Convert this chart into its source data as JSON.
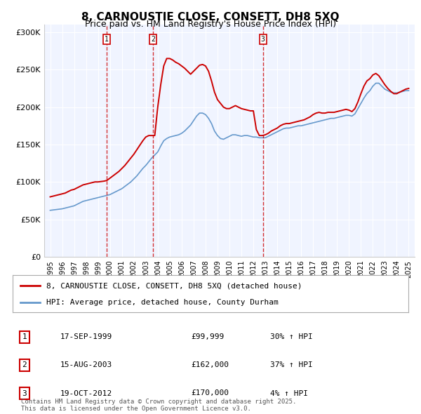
{
  "title": "8, CARNOUSTIE CLOSE, CONSETT, DH8 5XQ",
  "subtitle": "Price paid vs. HM Land Registry's House Price Index (HPI)",
  "legend_line1": "8, CARNOUSTIE CLOSE, CONSETT, DH8 5XQ (detached house)",
  "legend_line2": "HPI: Average price, detached house, County Durham",
  "footnote": "Contains HM Land Registry data © Crown copyright and database right 2025.\nThis data is licensed under the Open Government Licence v3.0.",
  "transactions": [
    {
      "num": 1,
      "date": "17-SEP-1999",
      "price": "£99,999",
      "change": "30% ↑ HPI",
      "year": 1999.71
    },
    {
      "num": 2,
      "date": "15-AUG-2003",
      "price": "£162,000",
      "change": "37% ↑ HPI",
      "year": 2003.62
    },
    {
      "num": 3,
      "date": "19-OCT-2012",
      "price": "£170,000",
      "change": "4% ↑ HPI",
      "year": 2012.8
    }
  ],
  "transaction_prices": [
    99999,
    162000,
    170000
  ],
  "red_line_color": "#cc0000",
  "blue_line_color": "#6699cc",
  "background_color": "#f0f4ff",
  "grid_color": "#ffffff",
  "ylim": [
    0,
    310000
  ],
  "xlim": [
    1994.5,
    2025.5
  ],
  "hpi_data": {
    "years": [
      1995.0,
      1995.25,
      1995.5,
      1995.75,
      1996.0,
      1996.25,
      1996.5,
      1996.75,
      1997.0,
      1997.25,
      1997.5,
      1997.75,
      1998.0,
      1998.25,
      1998.5,
      1998.75,
      1999.0,
      1999.25,
      1999.5,
      1999.75,
      2000.0,
      2000.25,
      2000.5,
      2000.75,
      2001.0,
      2001.25,
      2001.5,
      2001.75,
      2002.0,
      2002.25,
      2002.5,
      2002.75,
      2003.0,
      2003.25,
      2003.5,
      2003.75,
      2004.0,
      2004.25,
      2004.5,
      2004.75,
      2005.0,
      2005.25,
      2005.5,
      2005.75,
      2006.0,
      2006.25,
      2006.5,
      2006.75,
      2007.0,
      2007.25,
      2007.5,
      2007.75,
      2008.0,
      2008.25,
      2008.5,
      2008.75,
      2009.0,
      2009.25,
      2009.5,
      2009.75,
      2010.0,
      2010.25,
      2010.5,
      2010.75,
      2011.0,
      2011.25,
      2011.5,
      2011.75,
      2012.0,
      2012.25,
      2012.5,
      2012.75,
      2013.0,
      2013.25,
      2013.5,
      2013.75,
      2014.0,
      2014.25,
      2014.5,
      2014.75,
      2015.0,
      2015.25,
      2015.5,
      2015.75,
      2016.0,
      2016.25,
      2016.5,
      2016.75,
      2017.0,
      2017.25,
      2017.5,
      2017.75,
      2018.0,
      2018.25,
      2018.5,
      2018.75,
      2019.0,
      2019.25,
      2019.5,
      2019.75,
      2020.0,
      2020.25,
      2020.5,
      2020.75,
      2021.0,
      2021.25,
      2021.5,
      2021.75,
      2022.0,
      2022.25,
      2022.5,
      2022.75,
      2023.0,
      2023.25,
      2023.5,
      2023.75,
      2024.0,
      2024.25,
      2024.5,
      2024.75,
      2025.0
    ],
    "values": [
      62000,
      62500,
      63000,
      63500,
      64000,
      65000,
      66000,
      67000,
      68000,
      70000,
      72000,
      74000,
      75000,
      76000,
      77000,
      78000,
      79000,
      80000,
      81000,
      82000,
      83000,
      85000,
      87000,
      89000,
      91000,
      94000,
      97000,
      100000,
      104000,
      108000,
      113000,
      118000,
      122000,
      127000,
      132000,
      136000,
      140000,
      148000,
      155000,
      158000,
      160000,
      161000,
      162000,
      163000,
      165000,
      168000,
      172000,
      176000,
      182000,
      188000,
      192000,
      192000,
      190000,
      185000,
      178000,
      168000,
      162000,
      158000,
      157000,
      159000,
      161000,
      163000,
      163000,
      162000,
      161000,
      162000,
      162000,
      161000,
      160000,
      160000,
      159000,
      159000,
      159000,
      161000,
      163000,
      165000,
      167000,
      169000,
      171000,
      172000,
      172000,
      173000,
      174000,
      175000,
      175000,
      176000,
      177000,
      178000,
      179000,
      180000,
      181000,
      182000,
      183000,
      184000,
      185000,
      185000,
      186000,
      187000,
      188000,
      189000,
      189000,
      188000,
      191000,
      198000,
      205000,
      212000,
      218000,
      222000,
      228000,
      232000,
      232000,
      228000,
      224000,
      222000,
      220000,
      219000,
      219000,
      220000,
      221000,
      222000,
      222000
    ]
  },
  "red_line_data": {
    "years": [
      1995.0,
      1995.25,
      1995.5,
      1995.75,
      1996.0,
      1996.25,
      1996.5,
      1996.75,
      1997.0,
      1997.25,
      1997.5,
      1997.75,
      1998.0,
      1998.25,
      1998.5,
      1998.75,
      1999.0,
      1999.25,
      1999.5,
      1999.75,
      2000.0,
      2000.25,
      2000.5,
      2000.75,
      2001.0,
      2001.25,
      2001.5,
      2001.75,
      2002.0,
      2002.25,
      2002.5,
      2002.75,
      2003.0,
      2003.25,
      2003.5,
      2003.75,
      2004.0,
      2004.25,
      2004.5,
      2004.75,
      2005.0,
      2005.25,
      2005.5,
      2005.75,
      2006.0,
      2006.25,
      2006.5,
      2006.75,
      2007.0,
      2007.25,
      2007.5,
      2007.75,
      2008.0,
      2008.25,
      2008.5,
      2008.75,
      2009.0,
      2009.25,
      2009.5,
      2009.75,
      2010.0,
      2010.25,
      2010.5,
      2010.75,
      2011.0,
      2011.25,
      2011.5,
      2011.75,
      2012.0,
      2012.25,
      2012.5,
      2012.75,
      2013.0,
      2013.25,
      2013.5,
      2013.75,
      2014.0,
      2014.25,
      2014.5,
      2014.75,
      2015.0,
      2015.25,
      2015.5,
      2015.75,
      2016.0,
      2016.25,
      2016.5,
      2016.75,
      2017.0,
      2017.25,
      2017.5,
      2017.75,
      2018.0,
      2018.25,
      2018.5,
      2018.75,
      2019.0,
      2019.25,
      2019.5,
      2019.75,
      2020.0,
      2020.25,
      2020.5,
      2020.75,
      2021.0,
      2021.25,
      2021.5,
      2021.75,
      2022.0,
      2022.25,
      2022.5,
      2022.75,
      2023.0,
      2023.25,
      2023.5,
      2023.75,
      2024.0,
      2024.25,
      2024.5,
      2024.75,
      2025.0
    ],
    "values": [
      80000,
      81000,
      82000,
      83000,
      84000,
      85000,
      87000,
      89000,
      90000,
      92000,
      94000,
      96000,
      97000,
      98000,
      99000,
      100000,
      99999,
      100500,
      101000,
      102000,
      105000,
      108000,
      111000,
      114000,
      118000,
      122000,
      127000,
      132000,
      137000,
      143000,
      149000,
      155000,
      160000,
      162000,
      162000,
      162000,
      200000,
      230000,
      255000,
      265000,
      265000,
      263000,
      260000,
      258000,
      255000,
      252000,
      248000,
      244000,
      248000,
      252000,
      256000,
      257000,
      255000,
      248000,
      235000,
      220000,
      210000,
      205000,
      200000,
      198000,
      198000,
      200000,
      202000,
      200000,
      198000,
      197000,
      196000,
      195000,
      195000,
      170000,
      162000,
      162000,
      163000,
      165000,
      168000,
      170000,
      172000,
      175000,
      177000,
      178000,
      178000,
      179000,
      180000,
      181000,
      182000,
      183000,
      185000,
      187000,
      190000,
      192000,
      193000,
      192000,
      192000,
      193000,
      193000,
      193000,
      194000,
      195000,
      196000,
      197000,
      196000,
      194000,
      198000,
      207000,
      218000,
      228000,
      235000,
      238000,
      243000,
      245000,
      242000,
      236000,
      230000,
      225000,
      221000,
      218000,
      218000,
      220000,
      222000,
      224000,
      225000
    ]
  }
}
